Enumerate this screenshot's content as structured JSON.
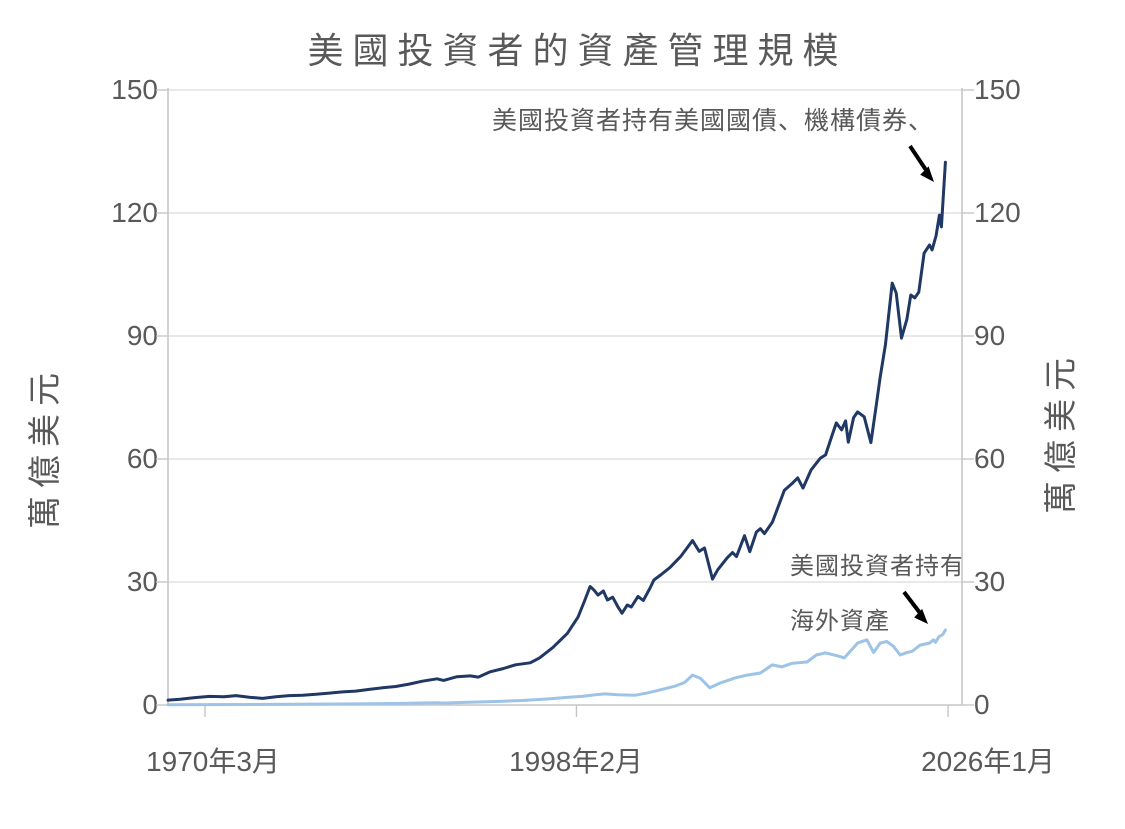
{
  "chart": {
    "title": "美國投資者的資產管理規模",
    "y_axis_label_left": "萬億美元",
    "y_axis_label_right": "萬億美元",
    "ytick_labels": [
      "150",
      "120",
      "90",
      "60",
      "30",
      "0"
    ],
    "xtick_labels": [
      "1970年3月",
      "1998年2月",
      "2026年1月"
    ],
    "annotations": {
      "series1_label": "美國投資者持有美國國債、機構債券、",
      "series2_label_line1": "美國投資者持有",
      "series2_label_line2": "海外資產"
    },
    "colors": {
      "series1": "#1f3864",
      "series2": "#9dc3e6",
      "text": "#595959",
      "grid": "#e2e2e2",
      "axis": "#c6c6c6",
      "arrow": "#000000"
    }
  },
  "chart_data": {
    "type": "line",
    "title": "美國投資者的資產管理規模",
    "ylabel": "萬億美元",
    "ylim": [
      0,
      150
    ],
    "yticks": [
      0,
      30,
      60,
      90,
      120,
      150
    ],
    "xtick_years": [
      1970.17,
      1998.08,
      2026.0
    ],
    "xtick_labels": [
      "1970年3月",
      "1998年2月",
      "2026年1月"
    ],
    "grid": true,
    "legend_position": "none",
    "series": [
      {
        "name": "美國投資者持有美國國債、機構債券、",
        "color": "#1f3864",
        "width": 3,
        "points": [
          [
            1967.4,
            1.2
          ],
          [
            1968.3,
            1.4
          ],
          [
            1969.4,
            1.8
          ],
          [
            1970.5,
            2.1
          ],
          [
            1971.6,
            2.0
          ],
          [
            1972.5,
            2.3
          ],
          [
            1973.5,
            1.9
          ],
          [
            1974.5,
            1.6
          ],
          [
            1975.5,
            2.0
          ],
          [
            1976.5,
            2.3
          ],
          [
            1977.5,
            2.4
          ],
          [
            1978.5,
            2.6
          ],
          [
            1979.5,
            2.9
          ],
          [
            1980.5,
            3.2
          ],
          [
            1981.5,
            3.4
          ],
          [
            1982.5,
            3.8
          ],
          [
            1983.5,
            4.2
          ],
          [
            1984.5,
            4.5
          ],
          [
            1985.5,
            5.1
          ],
          [
            1986.5,
            5.8
          ],
          [
            1987.6,
            6.4
          ],
          [
            1988.1,
            6.0
          ],
          [
            1989.1,
            6.9
          ],
          [
            1990.1,
            7.1
          ],
          [
            1990.7,
            6.8
          ],
          [
            1991.6,
            8.1
          ],
          [
            1992.6,
            8.9
          ],
          [
            1993.5,
            9.8
          ],
          [
            1994.6,
            10.3
          ],
          [
            1995.3,
            11.5
          ],
          [
            1996.3,
            14.0
          ],
          [
            1997.4,
            17.5
          ],
          [
            1998.2,
            21.5
          ],
          [
            1998.7,
            25.5
          ],
          [
            1999.1,
            28.9
          ],
          [
            1999.4,
            28.0
          ],
          [
            1999.7,
            26.8
          ],
          [
            2000.1,
            27.8
          ],
          [
            2000.4,
            25.6
          ],
          [
            2000.8,
            26.3
          ],
          [
            2001.2,
            23.9
          ],
          [
            2001.5,
            22.4
          ],
          [
            2001.9,
            24.4
          ],
          [
            2002.2,
            23.9
          ],
          [
            2002.7,
            26.5
          ],
          [
            2003.1,
            25.5
          ],
          [
            2003.6,
            28.5
          ],
          [
            2003.9,
            30.5
          ],
          [
            2004.4,
            31.7
          ],
          [
            2005.1,
            33.5
          ],
          [
            2005.9,
            36.2
          ],
          [
            2006.8,
            40.1
          ],
          [
            2007.3,
            37.5
          ],
          [
            2007.7,
            38.3
          ],
          [
            2008.3,
            30.7
          ],
          [
            2008.7,
            33.0
          ],
          [
            2009.4,
            35.9
          ],
          [
            2009.8,
            37.2
          ],
          [
            2010.1,
            36.2
          ],
          [
            2010.7,
            41.3
          ],
          [
            2011.1,
            37.4
          ],
          [
            2011.6,
            42.2
          ],
          [
            2011.9,
            43.0
          ],
          [
            2012.2,
            41.8
          ],
          [
            2012.8,
            44.6
          ],
          [
            2013.7,
            52.4
          ],
          [
            2014.3,
            54.1
          ],
          [
            2014.7,
            55.4
          ],
          [
            2015.1,
            52.9
          ],
          [
            2015.7,
            57.3
          ],
          [
            2016.4,
            60.2
          ],
          [
            2016.8,
            61.0
          ],
          [
            2017.2,
            65.0
          ],
          [
            2017.6,
            68.8
          ],
          [
            2018.0,
            67.1
          ],
          [
            2018.3,
            69.3
          ],
          [
            2018.5,
            64.1
          ],
          [
            2018.9,
            70.1
          ],
          [
            2019.2,
            71.5
          ],
          [
            2019.7,
            70.3
          ],
          [
            2020.2,
            64.0
          ],
          [
            2020.6,
            73.0
          ],
          [
            2020.9,
            80.0
          ],
          [
            2021.3,
            88.0
          ],
          [
            2021.8,
            102.9
          ],
          [
            2022.1,
            100.5
          ],
          [
            2022.5,
            89.5
          ],
          [
            2022.9,
            94.0
          ],
          [
            2023.2,
            100.0
          ],
          [
            2023.5,
            99.3
          ],
          [
            2023.8,
            100.7
          ],
          [
            2024.2,
            110.2
          ],
          [
            2024.6,
            112.2
          ],
          [
            2024.8,
            111.0
          ],
          [
            2025.1,
            114.5
          ],
          [
            2025.35,
            119.5
          ],
          [
            2025.5,
            116.6
          ],
          [
            2025.8,
            132.4
          ]
        ]
      },
      {
        "name": "美國投資者持有海外資產",
        "color": "#9dc3e6",
        "width": 3,
        "points": [
          [
            1967.4,
            0.05
          ],
          [
            1970.2,
            0.1
          ],
          [
            1975.0,
            0.15
          ],
          [
            1980.0,
            0.25
          ],
          [
            1985.0,
            0.4
          ],
          [
            1987.2,
            0.55
          ],
          [
            1988.3,
            0.5
          ],
          [
            1990.0,
            0.65
          ],
          [
            1992.0,
            0.85
          ],
          [
            1994.0,
            1.1
          ],
          [
            1996.0,
            1.5
          ],
          [
            1997.5,
            1.9
          ],
          [
            1998.5,
            2.1
          ],
          [
            1999.5,
            2.5
          ],
          [
            2000.2,
            2.7
          ],
          [
            2001.2,
            2.5
          ],
          [
            2002.5,
            2.4
          ],
          [
            2003.5,
            3.0
          ],
          [
            2004.5,
            3.8
          ],
          [
            2005.5,
            4.6
          ],
          [
            2006.2,
            5.5
          ],
          [
            2006.8,
            7.3
          ],
          [
            2007.4,
            6.5
          ],
          [
            2008.1,
            4.2
          ],
          [
            2008.9,
            5.4
          ],
          [
            2010.0,
            6.6
          ],
          [
            2010.9,
            7.3
          ],
          [
            2011.9,
            7.8
          ],
          [
            2012.8,
            9.8
          ],
          [
            2013.5,
            9.3
          ],
          [
            2014.3,
            10.2
          ],
          [
            2015.4,
            10.5
          ],
          [
            2016.1,
            12.2
          ],
          [
            2016.8,
            12.7
          ],
          [
            2017.8,
            11.9
          ],
          [
            2018.2,
            11.5
          ],
          [
            2019.2,
            15.1
          ],
          [
            2019.9,
            15.9
          ],
          [
            2020.4,
            12.8
          ],
          [
            2020.9,
            15.1
          ],
          [
            2021.4,
            15.5
          ],
          [
            2021.9,
            14.3
          ],
          [
            2022.4,
            12.2
          ],
          [
            2022.9,
            12.8
          ],
          [
            2023.3,
            13.1
          ],
          [
            2023.9,
            14.6
          ],
          [
            2024.6,
            15.1
          ],
          [
            2024.9,
            15.9
          ],
          [
            2025.05,
            15.3
          ],
          [
            2025.3,
            16.6
          ],
          [
            2025.6,
            17.2
          ],
          [
            2025.8,
            18.3
          ]
        ]
      }
    ]
  }
}
